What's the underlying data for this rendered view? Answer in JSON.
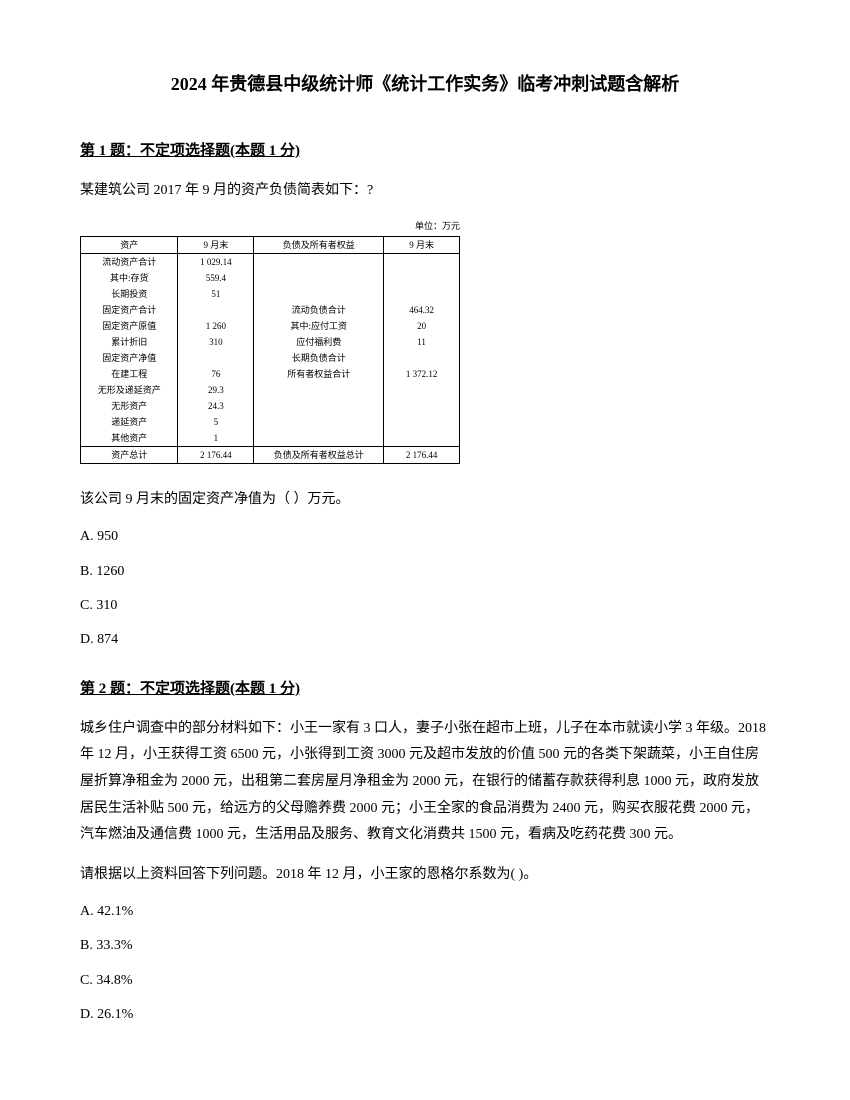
{
  "title": "2024 年贵德县中级统计师《统计工作实务》临考冲刺试题含解析",
  "q1": {
    "header": "第 1 题：不定项选择题(本题 1 分)",
    "text": "某建筑公司 2017 年 9 月的资产负债简表如下：?",
    "table_unit": "单位：万元",
    "headers": {
      "asset": "资产",
      "month_end": "9 月末",
      "liab": "负债及所有者权益",
      "month_end2": "9 月末"
    },
    "rows": {
      "r1_l": "流动资产合计",
      "r1_v": "1 029.14",
      "r2_l": "其中:存货",
      "r2_v": "559.4",
      "r3_l": "长期投资",
      "r3_v": "51",
      "r4_l": "固定资产合计",
      "r4_v": "",
      "r5_l": "固定资产原值",
      "r5_v": "1 260",
      "r6_l": "累计折旧",
      "r6_v": "310",
      "r7_l": "固定资产净值",
      "r7_v": "",
      "r8_l": "在建工程",
      "r8_v": "76",
      "r9_l": "无形及递延资产",
      "r9_v": "29.3",
      "r10_l": "无形资产",
      "r10_v": "24.3",
      "r11_l": "递延资产",
      "r11_v": "5",
      "r12_l": "其他资产",
      "r12_v": "1",
      "r13_l": "资产总计",
      "r13_v": "2 176.44",
      "rr1_l": "流动负债合计",
      "rr1_v": "464.32",
      "rr2_l": "其中:应付工资",
      "rr2_v": "20",
      "rr3_l": "应付福利费",
      "rr3_v": "11",
      "rr4_l": "长期负债合计",
      "rr4_v": "",
      "rr5_l": "所有者权益合计",
      "rr5_v": "1 372.12",
      "rr6_l": "负债及所有者权益总计",
      "rr6_v": "2 176.44"
    },
    "sub": "该公司 9 月末的固定资产净值为（ ）万元。",
    "options": {
      "a": "A. 950",
      "b": "B. 1260",
      "c": "C. 310",
      "d": "D. 874"
    }
  },
  "q2": {
    "header": "第 2 题：不定项选择题(本题 1 分)",
    "text": "城乡住户调查中的部分材料如下：小王一家有 3 口人，妻子小张在超市上班，儿子在本市就读小学 3 年级。2018 年 12 月，小王获得工资 6500 元，小张得到工资 3000 元及超市发放的价值 500 元的各类下架蔬菜，小王自住房屋折算净租金为 2000 元，出租第二套房屋月净租金为 2000 元，在银行的储蓄存款获得利息 1000 元，政府发放居民生活补贴 500 元，给远方的父母赡养费 2000 元；小王全家的食品消费为 2400 元，购买衣服花费 2000 元，汽车燃油及通信费 1000 元，生活用品及服务、教育文化消费共 1500 元，看病及吃药花费 300 元。",
    "sub": "  请根据以上资料回答下列问题。2018 年 12 月，小王家的恩格尔系数为( )。",
    "options": {
      "a": "A. 42.1%",
      "b": "B. 33.3%",
      "c": "C. 34.8%",
      "d": "D. 26.1%"
    }
  }
}
